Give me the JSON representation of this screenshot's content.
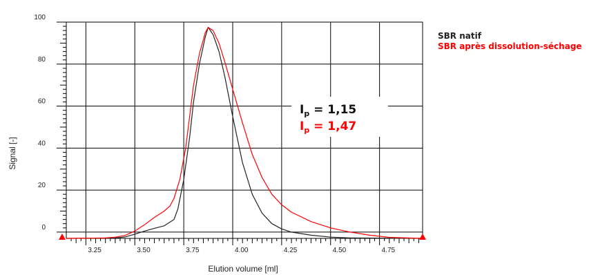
{
  "chart_data": {
    "type": "line",
    "xlabel": "Elution volume [ml]",
    "ylabel": "Signal [-]",
    "xlim": [
      3.15,
      4.97
    ],
    "ylim": [
      -3,
      100
    ],
    "x_ticks": [
      3.25,
      3.5,
      3.75,
      4.0,
      4.25,
      4.5,
      4.75
    ],
    "x_tick_labels": [
      "3.25",
      "3.50",
      "3.75",
      "4.00",
      "4.25",
      "4.50",
      "4.75"
    ],
    "y_ticks": [
      0,
      20,
      40,
      60,
      80,
      100
    ],
    "y_tick_labels": [
      "0",
      "20",
      "40",
      "60",
      "80",
      "100"
    ],
    "grid": true,
    "legend_position": "right",
    "series": [
      {
        "name": "SBR natif",
        "color": "#222222",
        "x": [
          3.15,
          3.4,
          3.45,
          3.5,
          3.55,
          3.6,
          3.65,
          3.7,
          3.72,
          3.75,
          3.78,
          3.8,
          3.83,
          3.86,
          3.875,
          3.9,
          3.93,
          3.96,
          4.0,
          4.05,
          4.1,
          4.15,
          4.2,
          4.25,
          4.3,
          4.4,
          4.5,
          4.6,
          4.97
        ],
        "y": [
          -3,
          -2.8,
          -2.3,
          -1.0,
          0.5,
          1.8,
          3.0,
          6.0,
          11,
          25,
          45,
          62,
          80,
          93,
          97.5,
          94,
          86,
          74,
          55,
          33,
          18,
          9,
          4,
          1.5,
          0,
          -1.5,
          -2.4,
          -2.8,
          -3
        ]
      },
      {
        "name": "SBR après dissolution-séchage",
        "color": "#ff0000",
        "x": [
          3.15,
          3.35,
          3.4,
          3.45,
          3.5,
          3.55,
          3.6,
          3.65,
          3.68,
          3.7,
          3.73,
          3.76,
          3.78,
          3.8,
          3.83,
          3.86,
          3.875,
          3.9,
          3.93,
          3.96,
          4.0,
          4.05,
          4.1,
          4.15,
          4.2,
          4.25,
          4.3,
          4.4,
          4.5,
          4.6,
          4.7,
          4.8,
          4.97
        ],
        "y": [
          -3,
          -2.8,
          -2.4,
          -1.6,
          0.5,
          3.5,
          7.0,
          10.0,
          12.5,
          16,
          25,
          40,
          55,
          70,
          85,
          95,
          97.5,
          96,
          90,
          81,
          68,
          52,
          37,
          26,
          18,
          13,
          9.5,
          5,
          2,
          0,
          -1.5,
          -2.5,
          -3
        ]
      }
    ],
    "annotations": [
      {
        "prefix": "I",
        "subscript": "p",
        "text": " = 1,15",
        "color": "#111111"
      },
      {
        "prefix": "I",
        "subscript": "p",
        "text": " = 1,47",
        "color": "#ff0000"
      }
    ]
  }
}
